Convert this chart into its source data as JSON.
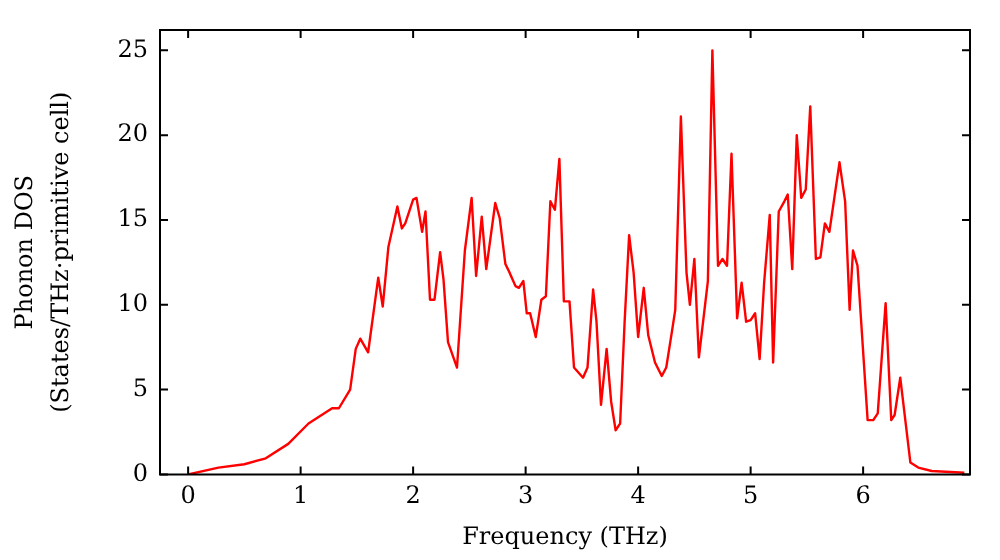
{
  "chart_data": {
    "type": "line",
    "xlabel": "Frequency (THz)",
    "ylabel": "Phonon DOS\n(States/THz·primitive cell)",
    "xlim": [
      -0.25,
      6.95
    ],
    "ylim": [
      0,
      26.2
    ],
    "xticks": [
      0,
      1,
      2,
      3,
      4,
      5,
      6
    ],
    "yticks": [
      0,
      5,
      10,
      15,
      20,
      25
    ],
    "marker": "none",
    "series": [
      {
        "color": "#ff0000",
        "x": [
          0,
          0.27,
          0.5,
          0.69,
          0.89,
          1.07,
          1.28,
          1.34,
          1.44,
          1.49,
          1.53,
          1.6,
          1.69,
          1.73,
          1.78,
          1.86,
          1.9,
          1.93,
          2.0,
          2.03,
          2.08,
          2.11,
          2.15,
          2.19,
          2.24,
          2.27,
          2.31,
          2.39,
          2.46,
          2.52,
          2.56,
          2.61,
          2.65,
          2.73,
          2.77,
          2.82,
          2.85,
          2.91,
          2.94,
          2.98,
          3.01,
          3.04,
          3.09,
          3.14,
          3.18,
          3.22,
          3.26,
          3.3,
          3.34,
          3.39,
          3.43,
          3.51,
          3.55,
          3.6,
          3.63,
          3.67,
          3.72,
          3.76,
          3.8,
          3.84,
          3.88,
          3.92,
          3.96,
          4.0,
          4.05,
          4.09,
          4.15,
          4.21,
          4.25,
          4.3,
          4.33,
          4.38,
          4.43,
          4.46,
          4.5,
          4.54,
          4.62,
          4.66,
          4.71,
          4.75,
          4.79,
          4.83,
          4.88,
          4.92,
          4.96,
          5.0,
          5.04,
          5.08,
          5.12,
          5.17,
          5.2,
          5.25,
          5.3,
          5.33,
          5.37,
          5.41,
          5.45,
          5.49,
          5.53,
          5.58,
          5.62,
          5.66,
          5.7,
          5.79,
          5.84,
          5.88,
          5.91,
          5.95,
          6.04,
          6.09,
          6.13,
          6.2,
          6.25,
          6.28,
          6.33,
          6.42,
          6.49,
          6.61,
          6.9
        ],
        "values": [
          0,
          0.4,
          0.6,
          0.95,
          1.8,
          3.0,
          3.9,
          3.9,
          5.0,
          7.4,
          8.0,
          7.2,
          11.6,
          9.9,
          13.4,
          15.8,
          14.5,
          14.8,
          16.2,
          16.3,
          14.3,
          15.5,
          10.3,
          10.3,
          13.1,
          11.5,
          7.8,
          6.3,
          13.2,
          16.3,
          11.7,
          15.2,
          12.1,
          16.0,
          15.1,
          12.4,
          12.0,
          11.1,
          11.0,
          11.4,
          9.5,
          9.5,
          8.1,
          10.3,
          10.5,
          16.1,
          15.6,
          18.6,
          10.2,
          10.2,
          6.3,
          5.7,
          6.3,
          10.9,
          9.0,
          4.1,
          7.4,
          4.3,
          2.6,
          3.0,
          9.0,
          14.1,
          11.9,
          8.1,
          11.0,
          8.2,
          6.6,
          5.8,
          6.3,
          8.4,
          9.7,
          21.1,
          11.9,
          10.0,
          12.7,
          6.9,
          11.4,
          25.0,
          12.3,
          12.7,
          12.3,
          18.9,
          9.2,
          11.3,
          9.0,
          9.1,
          9.5,
          6.8,
          11.3,
          15.3,
          6.6,
          15.5,
          16.1,
          16.5,
          12.1,
          20.0,
          16.3,
          16.8,
          21.7,
          12.7,
          12.8,
          14.8,
          14.3,
          18.4,
          16.1,
          9.7,
          13.2,
          12.3,
          3.2,
          3.2,
          3.6,
          10.1,
          3.2,
          3.5,
          5.7,
          0.7,
          0.4,
          0.2,
          0.1
        ]
      }
    ]
  }
}
